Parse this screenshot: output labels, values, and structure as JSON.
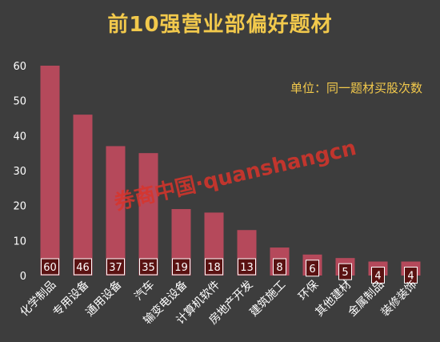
{
  "chart_data": {
    "type": "bar",
    "title": "前10强营业部偏好题材",
    "note": "单位：同一题材买股次数",
    "categories": [
      "化学制品",
      "专用设备",
      "通用设备",
      "汽车",
      "输变电设备",
      "计算机软件",
      "房地产开发",
      "建筑施工",
      "环保",
      "其他建材",
      "金属制品",
      "装修装饰"
    ],
    "values": [
      60,
      46,
      37,
      35,
      19,
      18,
      13,
      8,
      6,
      5,
      4,
      4
    ],
    "ylim": [
      0,
      60
    ],
    "yticks": [
      0,
      10,
      20,
      30,
      40,
      50,
      60
    ],
    "xlabel": "",
    "ylabel": "",
    "grid": false,
    "bar_color": "#b5495b",
    "label_box_color": "#5a1212"
  },
  "watermark": "券商中国·quanshangcn",
  "colors": {
    "background": "#3d3d3d",
    "title": "#f2c94c"
  }
}
